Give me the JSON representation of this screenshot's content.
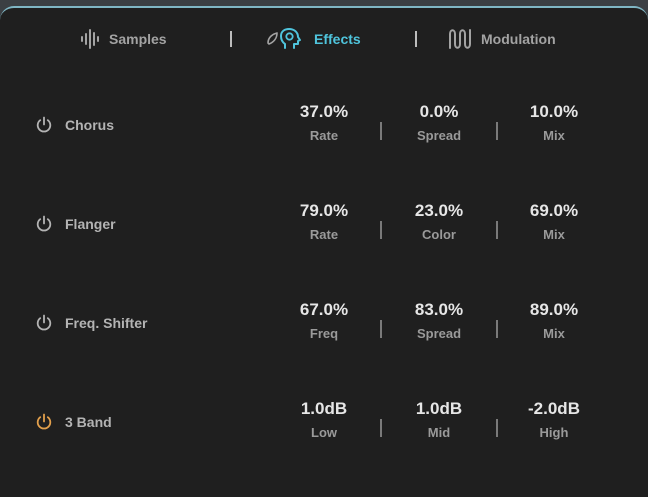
{
  "tabs": [
    {
      "label": "Samples",
      "icon": "waveform-icon",
      "active": false
    },
    {
      "label": "Effects",
      "icon": "effects-head-icon",
      "active": true
    },
    {
      "label": "Modulation",
      "icon": "modulation-wave-icon",
      "active": false
    }
  ],
  "colors": {
    "accent": "#4fc4dc",
    "power_on": "#e3a04c",
    "power_off": "#b4b4b4",
    "panel_bg": "#1f1f1f"
  },
  "effects": [
    {
      "name": "Chorus",
      "enabled": false,
      "params": [
        {
          "value": "37.0%",
          "label": "Rate"
        },
        {
          "value": "0.0%",
          "label": "Spread"
        },
        {
          "value": "10.0%",
          "label": "Mix"
        }
      ]
    },
    {
      "name": "Flanger",
      "enabled": false,
      "params": [
        {
          "value": "79.0%",
          "label": "Rate"
        },
        {
          "value": "23.0%",
          "label": "Color"
        },
        {
          "value": "69.0%",
          "label": "Mix"
        }
      ]
    },
    {
      "name": "Freq. Shifter",
      "enabled": false,
      "params": [
        {
          "value": "67.0%",
          "label": "Freq"
        },
        {
          "value": "83.0%",
          "label": "Spread"
        },
        {
          "value": "89.0%",
          "label": "Mix"
        }
      ]
    },
    {
      "name": "3 Band",
      "enabled": true,
      "params": [
        {
          "value": "1.0dB",
          "label": "Low"
        },
        {
          "value": "1.0dB",
          "label": "Mid"
        },
        {
          "value": "-2.0dB",
          "label": "High"
        }
      ]
    }
  ]
}
